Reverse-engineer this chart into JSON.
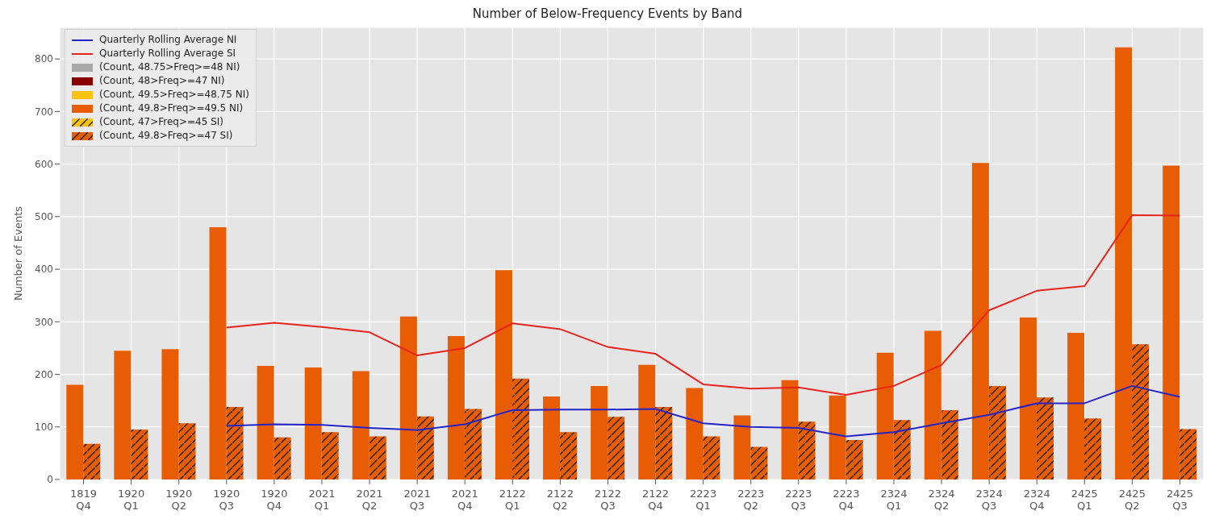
{
  "chart_data": {
    "type": "bar",
    "title": "Number of Below-Frequency Events by Band",
    "ylabel": "Number of Events",
    "categories": [
      "1819 Q4",
      "1920 Q1",
      "1920 Q2",
      "1920 Q3",
      "1920 Q4",
      "2021 Q1",
      "2021 Q2",
      "2021 Q3",
      "2021 Q4",
      "2122 Q1",
      "2122 Q2",
      "2122 Q3",
      "2122 Q4",
      "2223 Q1",
      "2223 Q2",
      "2223 Q3",
      "2223 Q4",
      "2324 Q1",
      "2324 Q2",
      "2324 Q3",
      "2324 Q4",
      "2425 Q1",
      "2425 Q2",
      "2425 Q3"
    ],
    "ylim": [
      0,
      860
    ],
    "yticks": [
      0,
      100,
      200,
      300,
      400,
      500,
      600,
      700,
      800
    ],
    "grid": true,
    "legend": "top left",
    "series": [
      {
        "name": "(Count, 48.75>Freq>=48 NI)",
        "color": "#a9a9a9",
        "values": [
          0,
          0,
          0,
          0,
          0,
          0,
          0,
          0,
          0,
          0,
          0,
          0,
          0,
          0,
          0,
          0,
          0,
          0,
          0,
          0,
          0,
          0,
          0,
          0
        ]
      },
      {
        "name": "(Count, 48>Freq>=47 NI)",
        "color": "#8b0000",
        "values": [
          0,
          0,
          0,
          0,
          0,
          0,
          0,
          0,
          0,
          0,
          0,
          0,
          0,
          0,
          0,
          0,
          0,
          0,
          0,
          0,
          0,
          0,
          0,
          0
        ]
      },
      {
        "name": "(Count, 49.5>Freq>=48.75 NI)",
        "color": "#ffc20e",
        "values": [
          0,
          0,
          0,
          0,
          0,
          0,
          0,
          0,
          0,
          0,
          0,
          0,
          0,
          0,
          0,
          0,
          0,
          0,
          0,
          0,
          0,
          0,
          0,
          0
        ]
      },
      {
        "name": "(Count, 49.8>Freq>=49.5 NI)",
        "color": "#e85d04",
        "values": [
          180,
          245,
          248,
          480,
          216,
          213,
          206,
          310,
          273,
          398,
          158,
          178,
          218,
          174,
          122,
          189,
          160,
          241,
          283,
          602,
          308,
          279,
          822,
          597
        ]
      },
      {
        "name": "(Count, 47>Freq>=45 SI)",
        "color": "#ffc20e",
        "values": [
          0,
          0,
          0,
          0,
          0,
          0,
          0,
          0,
          0,
          0,
          0,
          0,
          0,
          0,
          0,
          0,
          0,
          0,
          0,
          0,
          0,
          0,
          0,
          0
        ]
      },
      {
        "name": "(Count, 49.8>Freq>=47 SI)",
        "color": "#e85d04",
        "values": [
          68,
          95,
          107,
          138,
          80,
          90,
          82,
          120,
          134,
          192,
          90,
          119,
          138,
          82,
          62,
          110,
          75,
          113,
          132,
          178,
          156,
          116,
          257,
          96
        ]
      },
      {
        "name": "Quarterly Rolling Average NI",
        "type": "line",
        "color": "#2424c8",
        "values": [
          null,
          null,
          null,
          102,
          105,
          104,
          98,
          94,
          105,
          132,
          133,
          133,
          134,
          107,
          100,
          98,
          82,
          90,
          107,
          123,
          145,
          145,
          178,
          157
        ]
      },
      {
        "name": "Quarterly Rolling Average SI",
        "type": "line",
        "color": "#e8231c",
        "values": [
          null,
          null,
          null,
          289,
          298,
          290,
          280,
          236,
          250,
          297,
          286,
          252,
          239,
          181,
          173,
          175,
          161,
          178,
          218,
          322,
          359,
          368,
          503,
          502
        ]
      }
    ]
  }
}
